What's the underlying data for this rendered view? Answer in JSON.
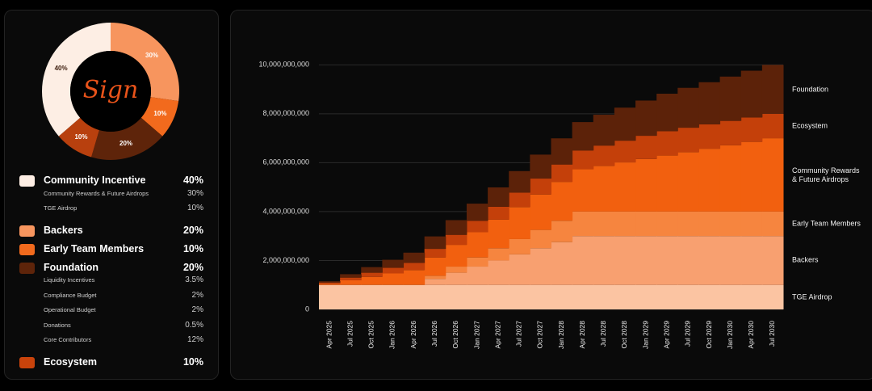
{
  "chart_data": [
    {
      "type": "pie",
      "center_text": "Sign",
      "values": [
        30,
        10,
        20,
        10,
        40
      ],
      "value_labels": [
        "30%",
        "10%",
        "20%",
        "10%",
        "40%"
      ],
      "colors": [
        "#f7955e",
        "#f26a1d",
        "#5e240a",
        "#b8400e",
        "#fdeee4"
      ]
    },
    {
      "type": "area",
      "step": true,
      "grid": true,
      "categories": [
        "Apr 2025",
        "Jul 2025",
        "Oct 2025",
        "Jan 2026",
        "Apr 2026",
        "Jul 2026",
        "Oct 2026",
        "Jan 2027",
        "Apr 2027",
        "Jul 2027",
        "Oct 2027",
        "Jan 2028",
        "Apr 2028",
        "Jul 2028",
        "Oct 2028",
        "Jan 2029",
        "Apr 2029",
        "Jul 2029",
        "Oct 2029",
        "Jan 2030",
        "Apr 2030",
        "Jul 2030"
      ],
      "ylim": [
        0,
        11000000000
      ],
      "yticks": [
        0,
        {
          "value": 2000000000,
          "label": "2,000,000,000"
        },
        {
          "value": 4000000000,
          "label": "4,000,000,000"
        },
        {
          "value": 6000000000,
          "label": "6,000,000,000"
        },
        {
          "value": 8000000000,
          "label": "8,000,000,000"
        },
        {
          "value": 10000000000,
          "label": "10,000,000,000"
        }
      ],
      "series": [
        {
          "name": "TGE Airdrop",
          "color": "#fbc4a2",
          "values": [
            1000000000,
            1000000000,
            1000000000,
            1000000000,
            1000000000,
            1000000000,
            1000000000,
            1000000000,
            1000000000,
            1000000000,
            1000000000,
            1000000000,
            1000000000,
            1000000000,
            1000000000,
            1000000000,
            1000000000,
            1000000000,
            1000000000,
            1000000000,
            1000000000,
            1000000000
          ]
        },
        {
          "name": "Backers",
          "color": "#f8a070",
          "values": [
            0,
            0,
            0,
            0,
            0,
            250000000,
            500000000,
            750000000,
            1000000000,
            1250000000,
            1500000000,
            1750000000,
            2000000000,
            2000000000,
            2000000000,
            2000000000,
            2000000000,
            2000000000,
            2000000000,
            2000000000,
            2000000000,
            2000000000
          ]
        },
        {
          "name": "Early Team Members",
          "color": "#f6853f",
          "values": [
            0,
            0,
            0,
            0,
            0,
            125000000,
            250000000,
            375000000,
            500000000,
            625000000,
            750000000,
            875000000,
            1000000000,
            1000000000,
            1000000000,
            1000000000,
            1000000000,
            1000000000,
            1000000000,
            1000000000,
            1000000000,
            1000000000
          ]
        },
        {
          "name": "Community Rewards & Future Airdrops",
          "color": "#f2600f",
          "values": [
            50000000,
            190000000,
            330000000,
            470000000,
            610000000,
            750000000,
            890000000,
            1030000000,
            1170000000,
            1310000000,
            1450000000,
            1590000000,
            1730000000,
            1870000000,
            2010000000,
            2150000000,
            2290000000,
            2430000000,
            2570000000,
            2710000000,
            2850000000,
            3000000000
          ]
        },
        {
          "name": "Ecosystem",
          "color": "#c4400a",
          "values": [
            50000000,
            110000000,
            170000000,
            230000000,
            290000000,
            350000000,
            410000000,
            470000000,
            530000000,
            590000000,
            650000000,
            710000000,
            770000000,
            830000000,
            890000000,
            950000000,
            1000000000,
            1000000000,
            1000000000,
            1000000000,
            1000000000,
            1000000000
          ]
        },
        {
          "name": "Foundation",
          "color": "#5c2209",
          "values": [
            50000000,
            140000000,
            230000000,
            330000000,
            420000000,
            510000000,
            600000000,
            700000000,
            790000000,
            880000000,
            980000000,
            1070000000,
            1160000000,
            1260000000,
            1350000000,
            1440000000,
            1530000000,
            1630000000,
            1720000000,
            1810000000,
            1910000000,
            2000000000
          ]
        }
      ]
    }
  ],
  "legend": [
    {
      "label": "Community Incentive",
      "value": "40%",
      "color": "#fdeee4",
      "items": [
        {
          "label": "Community Rewards & Future Airdrops",
          "value": "30%"
        },
        {
          "label": "TGE Airdrop",
          "value": "10%"
        }
      ]
    },
    {
      "label": "Backers",
      "value": "20%",
      "color": "#f7955e",
      "items": []
    },
    {
      "label": "Early Team Members",
      "value": "10%",
      "color": "#f26a1d",
      "items": []
    },
    {
      "label": "Foundation",
      "value": "20%",
      "color": "#5e240a",
      "items": [
        {
          "label": "Liquidity Incentives",
          "value": "3.5%"
        },
        {
          "label": "Compliance Budget",
          "value": "2%"
        },
        {
          "label": "Operational Budget",
          "value": "2%"
        },
        {
          "label": "Donations",
          "value": "0.5%"
        },
        {
          "label": "Core Contributors",
          "value": "12%"
        }
      ]
    },
    {
      "label": "Ecosystem",
      "value": "10%",
      "color": "#c9430b",
      "items": []
    }
  ]
}
